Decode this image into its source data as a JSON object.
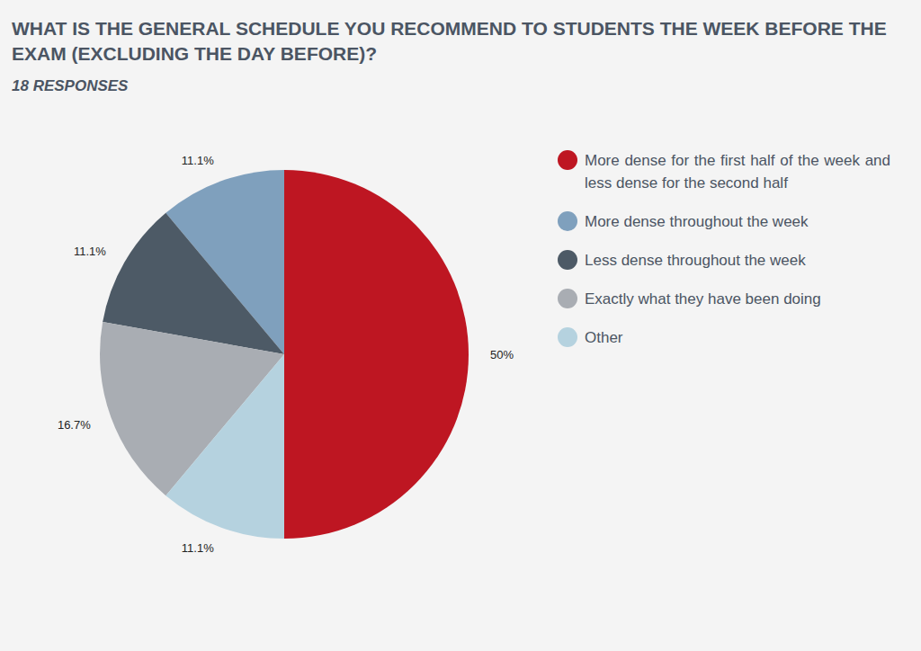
{
  "chart_data": {
    "type": "pie",
    "title": "WHAT IS THE GENERAL SCHEDULE YOU RECOMMEND TO STUDENTS THE WEEK BEFORE THE EXAM (EXCLUDING THE DAY BEFORE)?",
    "subtitle": "18 RESPONSES",
    "categories": [
      "More dense for the first half of the week and less dense for the second half",
      "More dense throughout the week",
      "Less dense throughout the week",
      "Exactly what they have been doing",
      "Other"
    ],
    "values": [
      50,
      11.1,
      11.1,
      16.7,
      11.1
    ],
    "value_labels": [
      "50%",
      "11.1%",
      "11.1%",
      "16.7%",
      "11.1%"
    ],
    "colors": [
      "#be1622",
      "#7fa0bd",
      "#4d5a66",
      "#a9adb3",
      "#b5d2df"
    ],
    "data_labels": true,
    "legend": "right"
  }
}
